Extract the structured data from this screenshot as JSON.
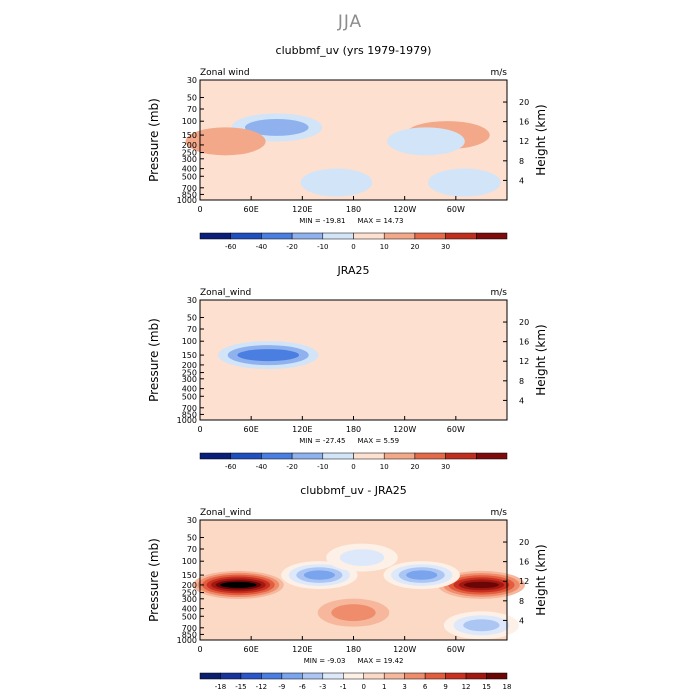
{
  "figure": {
    "season": "JJA",
    "axis_labels": {
      "y_left": "Pressure (mb)",
      "y_right": "Height (km)"
    }
  },
  "chart_data": [
    {
      "type": "heatmap",
      "title": "clubbmf_uv (yrs 1979-1979)",
      "left_label": "Zonal wind",
      "units": "m/s",
      "min_label": "MIN = -19.81",
      "max_label": "MAX = 14.73",
      "x_ticks": [
        "0",
        "60E",
        "120E",
        "180",
        "120W",
        "60W"
      ],
      "y_ticks": [
        "30",
        "50",
        "70",
        "100",
        "150",
        "200",
        "250",
        "300",
        "400",
        "500",
        "700",
        "850",
        "1000"
      ],
      "y_right_ticks": [
        "4",
        "8",
        "12",
        "16",
        "20"
      ],
      "levels": [
        "-60",
        "-40",
        "-20",
        "-10",
        "0",
        "10",
        "20",
        "30"
      ],
      "xlim": [
        0,
        360
      ],
      "ylim_mb": [
        1000,
        30
      ],
      "features": [
        {
          "lon": 90,
          "p": 120,
          "value": -19
        },
        {
          "lon": 30,
          "p": 180,
          "value": 10
        },
        {
          "lon": 290,
          "p": 150,
          "value": 14
        },
        {
          "lon": 215,
          "p": 60,
          "value": 5
        },
        {
          "lon": 265,
          "p": 180,
          "value": -8
        },
        {
          "lon": 310,
          "p": 600,
          "value": -4
        },
        {
          "lon": 160,
          "p": 600,
          "value": -3
        }
      ]
    },
    {
      "type": "heatmap",
      "title": "JRA25",
      "left_label": "Zonal_wind",
      "units": "m/s",
      "min_label": "MIN = -27.45",
      "max_label": "MAX =   5.59",
      "x_ticks": [
        "0",
        "60E",
        "120E",
        "180",
        "120W",
        "60W"
      ],
      "y_ticks": [
        "30",
        "50",
        "70",
        "100",
        "150",
        "200",
        "250",
        "300",
        "400",
        "500",
        "700",
        "850",
        "1000"
      ],
      "y_right_ticks": [
        "4",
        "8",
        "12",
        "16",
        "20"
      ],
      "levels": [
        "-60",
        "-40",
        "-20",
        "-10",
        "0",
        "10",
        "20",
        "30"
      ],
      "xlim": [
        0,
        360
      ],
      "ylim_mb": [
        1000,
        30
      ],
      "features": [
        {
          "lon": 80,
          "p": 150,
          "value": -27
        },
        {
          "lon": 240,
          "p": 130,
          "value": 5
        },
        {
          "lon": 40,
          "p": 500,
          "value": 3
        },
        {
          "lon": 300,
          "p": 500,
          "value": 2
        }
      ]
    },
    {
      "type": "heatmap",
      "title": "clubbmf_uv - JRA25",
      "left_label": "Zonal_wind",
      "units": "m/s",
      "min_label": "MIN =  -9.03",
      "max_label": "MAX =  19.42",
      "x_ticks": [
        "0",
        "60E",
        "120E",
        "180",
        "120W",
        "60W"
      ],
      "y_ticks": [
        "30",
        "50",
        "70",
        "100",
        "150",
        "200",
        "250",
        "300",
        "400",
        "500",
        "700",
        "850",
        "1000"
      ],
      "y_right_ticks": [
        "4",
        "8",
        "12",
        "16",
        "20"
      ],
      "levels": [
        "-18",
        "-15",
        "-12",
        "-9",
        "-6",
        "-3",
        "-1",
        "0",
        "1",
        "3",
        "6",
        "9",
        "12",
        "15",
        "18"
      ],
      "xlim": [
        0,
        360
      ],
      "ylim_mb": [
        1000,
        30
      ],
      "features": [
        {
          "lon": 45,
          "p": 200,
          "value": 19
        },
        {
          "lon": 330,
          "p": 200,
          "value": 16
        },
        {
          "lon": 140,
          "p": 150,
          "value": -7
        },
        {
          "lon": 260,
          "p": 150,
          "value": -7
        },
        {
          "lon": 190,
          "p": 90,
          "value": -3
        },
        {
          "lon": 330,
          "p": 650,
          "value": -6
        },
        {
          "lon": 180,
          "p": 450,
          "value": 3
        }
      ]
    }
  ]
}
